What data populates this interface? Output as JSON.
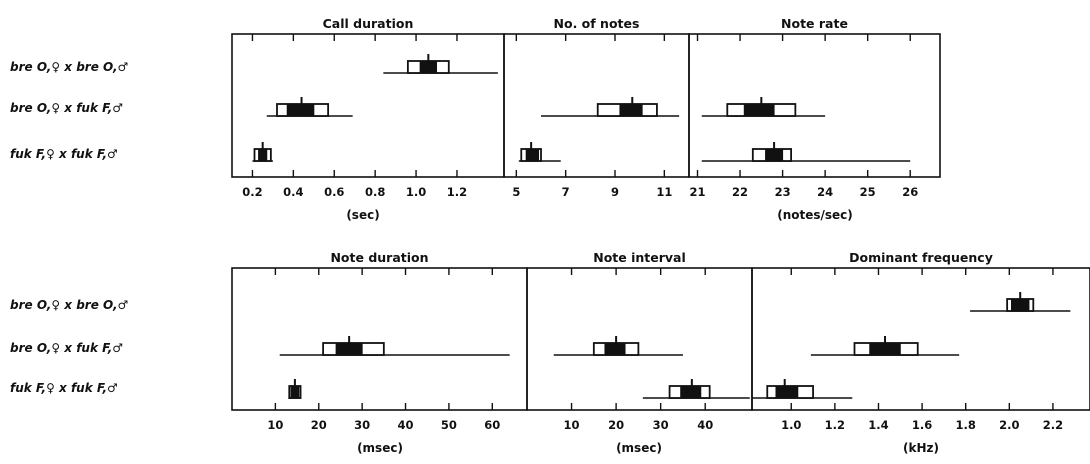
{
  "row_labels": [
    "bre O,♀ x bre O,♂",
    "bre O,♀ x fuk F,♂",
    "fuk F,♀ x fuk F,♂"
  ],
  "chart_data": [
    {
      "type": "range",
      "title": "Call duration",
      "xlabel": "(sec)",
      "xlim": [
        0.1,
        1.43
      ],
      "ticks": [
        0.2,
        0.4,
        0.6,
        0.8,
        1.0,
        1.2
      ],
      "tick_labels": [
        "0.2",
        "0.4",
        "0.6",
        "0.8",
        "1.0",
        "1.2"
      ],
      "groups": [
        {
          "range": [
            0.84,
            1.4
          ],
          "box": [
            0.96,
            1.16
          ],
          "inner": [
            1.02,
            1.1
          ],
          "mean": 1.06
        },
        {
          "range": [
            0.27,
            0.69
          ],
          "box": [
            0.32,
            0.57
          ],
          "inner": [
            0.37,
            0.5
          ],
          "mean": 0.44
        },
        {
          "range": [
            0.2,
            0.3
          ],
          "box": [
            0.21,
            0.29
          ],
          "inner": [
            0.23,
            0.27
          ],
          "mean": 0.25
        }
      ]
    },
    {
      "type": "range",
      "title": "No. of notes",
      "xlabel": "",
      "xlim": [
        4.5,
        12.0
      ],
      "ticks": [
        5,
        7,
        9,
        11
      ],
      "tick_labels": [
        "5",
        "7",
        "9",
        "11"
      ],
      "groups": [
        {
          "range": [
            6.0,
            11.6
          ],
          "box": [
            8.3,
            10.7
          ],
          "inner": [
            9.2,
            10.1
          ],
          "mean": 9.7
        },
        {
          "range": [
            5.1,
            6.8
          ],
          "box": [
            5.2,
            6.0
          ],
          "inner": [
            5.4,
            5.9
          ],
          "mean": 5.6
        }
      ]
    },
    {
      "type": "range",
      "title": "Note rate",
      "xlabel": "(notes/sec)",
      "xlim": [
        20.8,
        26.7
      ],
      "ticks": [
        21,
        22,
        23,
        24,
        25,
        26
      ],
      "tick_labels": [
        "21",
        "22",
        "23",
        "24",
        "25",
        "26"
      ],
      "groups": [
        {
          "range": [
            21.1,
            24.0
          ],
          "box": [
            21.7,
            23.3
          ],
          "inner": [
            22.1,
            22.8
          ],
          "mean": 22.5
        },
        {
          "range": [
            21.1,
            26.0
          ],
          "box": [
            22.3,
            23.2
          ],
          "inner": [
            22.6,
            23.0
          ],
          "mean": 22.8
        }
      ]
    },
    {
      "type": "range",
      "title": "Note duration",
      "xlabel": "(msec)",
      "xlim": [
        0,
        68
      ],
      "ticks": [
        10,
        20,
        30,
        40,
        50,
        60
      ],
      "tick_labels": [
        "10",
        "20",
        "30",
        "40",
        "50",
        "60"
      ],
      "groups": [
        {
          "range": [
            11,
            64
          ],
          "box": [
            21,
            35
          ],
          "inner": [
            24,
            30
          ],
          "mean": 27
        },
        {
          "range": [
            13,
            16
          ],
          "box": [
            13.2,
            15.8
          ],
          "inner": [
            13.6,
            15.4
          ],
          "mean": 14.5
        }
      ]
    },
    {
      "type": "range",
      "title": "Note interval",
      "xlabel": "(msec)",
      "xlim": [
        0,
        50.5
      ],
      "ticks": [
        10,
        20,
        30,
        40
      ],
      "tick_labels": [
        "10",
        "20",
        "30",
        "40"
      ],
      "groups": [
        {
          "range": [
            6,
            35
          ],
          "box": [
            15,
            25
          ],
          "inner": [
            17.5,
            22
          ],
          "mean": 20
        },
        {
          "range": [
            26,
            50
          ],
          "box": [
            32,
            41
          ],
          "inner": [
            34.5,
            39
          ],
          "mean": 37
        }
      ]
    },
    {
      "type": "range",
      "title": "Dominant frequency",
      "xlabel": "(kHz)",
      "xlim": [
        0.82,
        2.37
      ],
      "ticks": [
        1.0,
        1.2,
        1.4,
        1.6,
        1.8,
        2.0,
        2.2
      ],
      "tick_labels": [
        "1.0",
        "1.2",
        "1.4",
        "1.6",
        "1.8",
        "2.0",
        "2.2"
      ],
      "groups": [
        {
          "range": [
            1.82,
            2.28
          ],
          "box": [
            1.99,
            2.11
          ],
          "inner": [
            2.01,
            2.09
          ],
          "mean": 2.05
        },
        {
          "range": [
            1.09,
            1.77
          ],
          "box": [
            1.29,
            1.58
          ],
          "inner": [
            1.36,
            1.5
          ],
          "mean": 1.43
        },
        {
          "range": [
            0.82,
            1.28
          ],
          "box": [
            0.89,
            1.1
          ],
          "inner": [
            0.93,
            1.03
          ],
          "mean": 0.97
        }
      ]
    }
  ]
}
